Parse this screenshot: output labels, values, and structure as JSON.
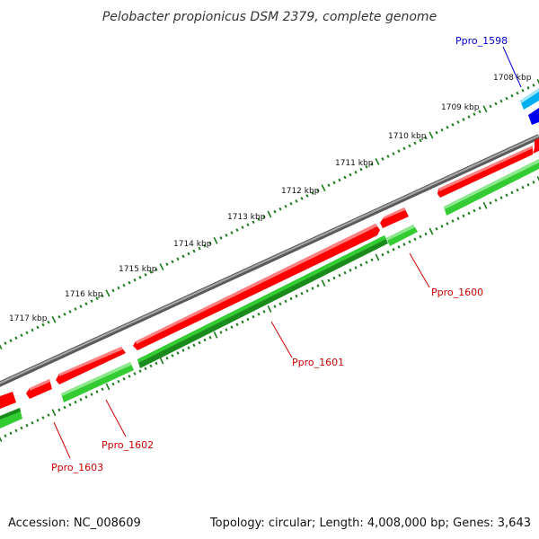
{
  "title": "Pelobacter propionicus DSM 2379, complete genome",
  "footer": {
    "accession": "Accession: NC_008609",
    "summary": "Topology: circular; Length: 4,008,000 bp; Genes: 3,643"
  },
  "scale_labels": [
    "1708 kbp",
    "1709 kbp",
    "1710 kbp",
    "1711 kbp",
    "1712 kbp",
    "1713 kbp",
    "1714 kbp",
    "1715 kbp",
    "1716 kbp",
    "1717 kbp"
  ],
  "gene_labels": {
    "ppro_1598": "Ppro_1598",
    "ppro_1600": "Ppro_1600",
    "ppro_1601": "Ppro_1601",
    "ppro_1602": "Ppro_1602",
    "ppro_1603": "Ppro_1603"
  },
  "colors": {
    "forward_cds": "#ff0000",
    "reverse_cds": "#33cc33",
    "reverse_cds_dark": "#1a8a1a",
    "backbone": "#808080",
    "scale_ticks": "#1a7a1a",
    "label_forward": "#cc0000",
    "label_highlight": "#0000cc",
    "cyan_feature": "#00b0f0",
    "blue_feature": "#0000ee"
  }
}
